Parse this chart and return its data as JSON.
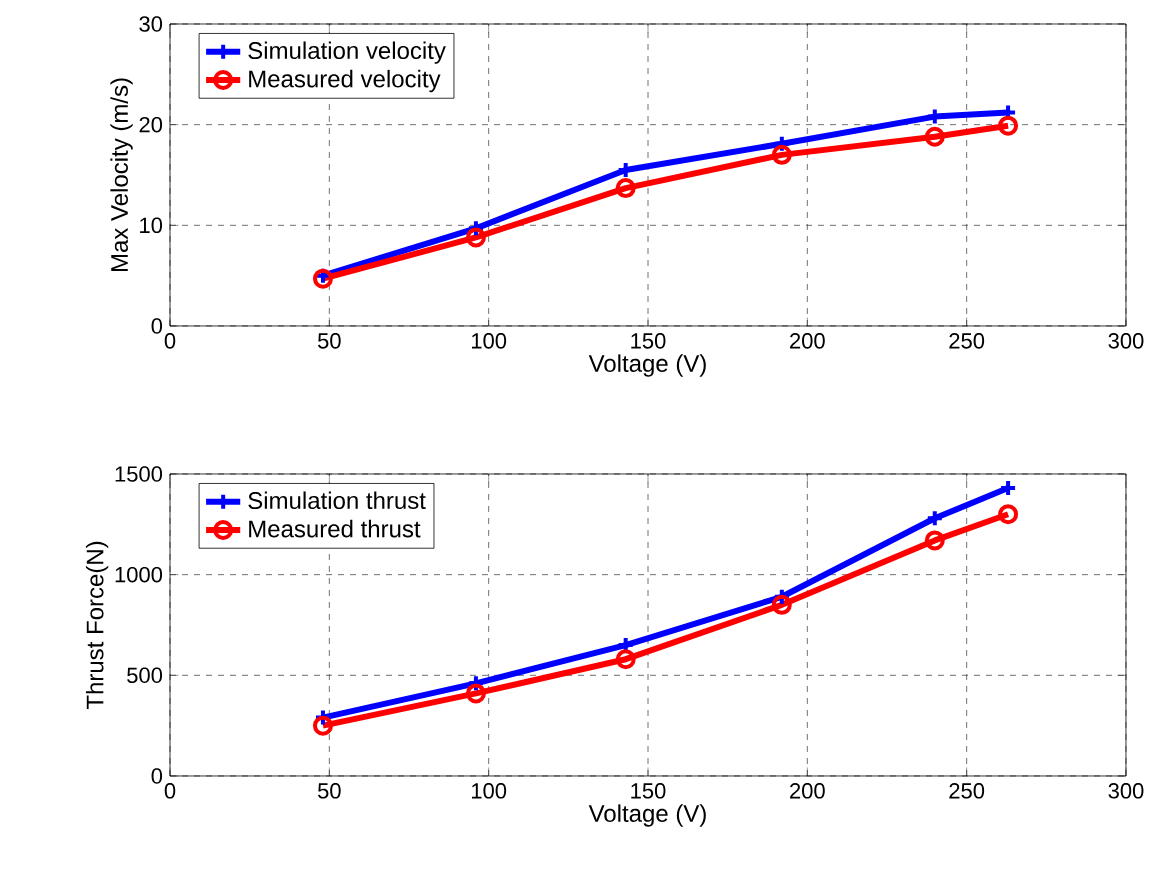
{
  "chart_data": [
    {
      "type": "line",
      "xlabel": "Voltage (V)",
      "ylabel": "Max Velocity (m/s)",
      "x": [
        48,
        96,
        143,
        192,
        240,
        263
      ],
      "series": [
        {
          "name": "Simulation velocity",
          "color": "#0000ff",
          "marker": "cross",
          "values": [
            5.0,
            9.7,
            15.5,
            18.1,
            20.8,
            21.2
          ]
        },
        {
          "name": "Measured velocity",
          "color": "#ff0000",
          "marker": "circle",
          "values": [
            4.7,
            8.8,
            13.7,
            17.0,
            18.8,
            19.9
          ]
        }
      ],
      "xlim": [
        0,
        300
      ],
      "xticks": [
        0,
        50,
        100,
        150,
        200,
        250,
        300
      ],
      "ylim": [
        0,
        30
      ],
      "yticks": [
        0,
        10,
        20,
        30
      ],
      "grid": true,
      "legend": "top left"
    },
    {
      "type": "line",
      "xlabel": "Voltage (V)",
      "ylabel": "Thrust Force(N)",
      "x": [
        48,
        96,
        143,
        192,
        240,
        263
      ],
      "series": [
        {
          "name": "Simulation thrust",
          "color": "#0000ff",
          "marker": "cross",
          "values": [
            290,
            460,
            650,
            890,
            1280,
            1430
          ]
        },
        {
          "name": "Measured thrust",
          "color": "#ff0000",
          "marker": "circle",
          "values": [
            250,
            410,
            580,
            850,
            1170,
            1300
          ]
        }
      ],
      "xlim": [
        0,
        300
      ],
      "xticks": [
        0,
        50,
        100,
        150,
        200,
        250,
        300
      ],
      "ylim": [
        0,
        1500
      ],
      "yticks": [
        0,
        500,
        1000,
        1500
      ],
      "grid": true,
      "legend": "top left"
    }
  ]
}
